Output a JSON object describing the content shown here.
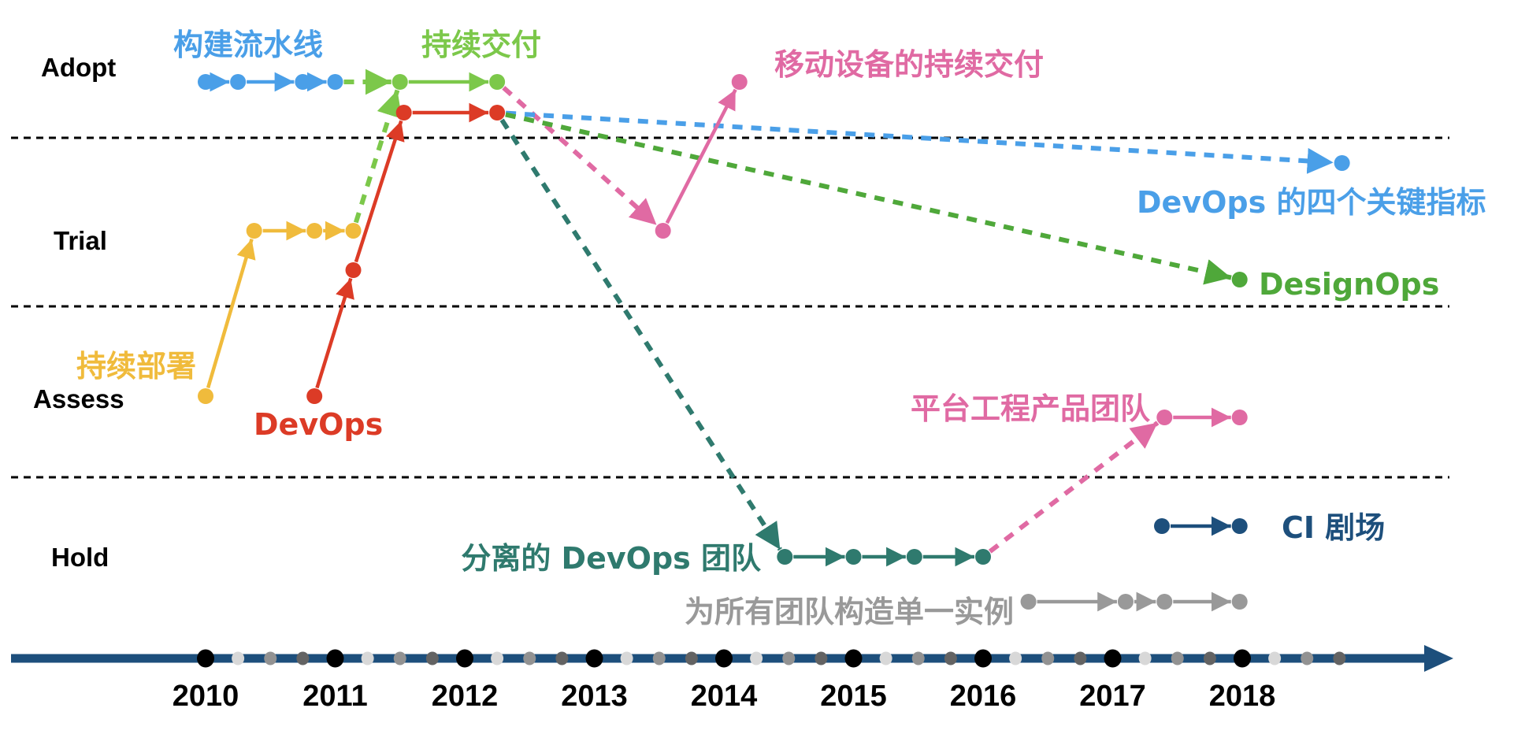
{
  "chart_data": {
    "type": "timeline",
    "title": "",
    "x_axis": {
      "start": 2010,
      "end": 2018,
      "ticks": [
        "2010",
        "2011",
        "2012",
        "2013",
        "2014",
        "2015",
        "2016",
        "2017",
        "2018"
      ],
      "minor_ticks_per_year": 3,
      "extra_minor_after_end": 3,
      "axis_color": "#1d4f7c"
    },
    "rings": [
      {
        "label": "Adopt"
      },
      {
        "label": "Trial"
      },
      {
        "label": "Assess"
      },
      {
        "label": "Hold"
      }
    ],
    "series": [
      {
        "name": "构建流水线",
        "color": "#4a9fe8",
        "label_pos": "above-start",
        "points": [
          {
            "t": 2010.0,
            "ring": "Adopt",
            "lvl": 0
          },
          {
            "t": 2010.25,
            "ring": "Adopt",
            "lvl": 0
          },
          {
            "t": 2010.75,
            "ring": "Adopt",
            "lvl": 0
          },
          {
            "t": 2011.0,
            "ring": "Adopt",
            "lvl": 0
          }
        ]
      },
      {
        "name": "持续交付",
        "color": "#7cc84a",
        "label_pos": "above-start",
        "points": [
          {
            "t": 2011.5,
            "ring": "Adopt",
            "lvl": 0
          },
          {
            "t": 2012.25,
            "ring": "Adopt",
            "lvl": 0
          }
        ]
      },
      {
        "name": "持续部署",
        "color": "#f0bb3c",
        "label_pos": "left-start",
        "points": [
          {
            "t": 2010.0,
            "ring": "Assess",
            "lvl": 0
          },
          {
            "t": 2010.375,
            "ring": "Trial",
            "lvl": 0
          },
          {
            "t": 2010.84,
            "ring": "Trial",
            "lvl": 0
          },
          {
            "t": 2011.14,
            "ring": "Trial",
            "lvl": 0
          }
        ]
      },
      {
        "name": "DevOps",
        "color": "#dc3b26",
        "label_pos": "below-start",
        "points": [
          {
            "t": 2010.84,
            "ring": "Assess",
            "lvl": 0
          },
          {
            "t": 2011.14,
            "ring": "Trial",
            "lvl": 1
          },
          {
            "t": 2011.53,
            "ring": "Adopt",
            "lvl": 1
          },
          {
            "t": 2012.25,
            "ring": "Adopt",
            "lvl": 1
          }
        ]
      },
      {
        "name": "移动设备的持续交付",
        "color": "#e06aa3",
        "label_pos": "right-end",
        "points": [
          {
            "t": 2013.53,
            "ring": "Trial",
            "lvl": 0
          },
          {
            "t": 2014.12,
            "ring": "Adopt",
            "lvl": 0
          }
        ]
      },
      {
        "name": "DevOps 的四个关键指标",
        "color": "#4a9fe8",
        "label_pos": "below-end",
        "points": [
          {
            "t": 2018.77,
            "ring": "Trial",
            "lvl": -1
          }
        ]
      },
      {
        "name": "DesignOps",
        "color": "#4fa83a",
        "label_pos": "right-end",
        "points": [
          {
            "t": 2017.98,
            "ring": "Trial",
            "lvl": 2
          }
        ]
      },
      {
        "name": "分离的 DevOps 团队",
        "color": "#2f7a6e",
        "label_pos": "left-start",
        "points": [
          {
            "t": 2014.47,
            "ring": "Hold",
            "lvl": 1
          },
          {
            "t": 2015.0,
            "ring": "Hold",
            "lvl": 1
          },
          {
            "t": 2015.47,
            "ring": "Hold",
            "lvl": 1
          },
          {
            "t": 2016.0,
            "ring": "Hold",
            "lvl": 1
          }
        ]
      },
      {
        "name": "平台工程产品团队",
        "color": "#e06aa3",
        "label_pos": "left-start",
        "points": [
          {
            "t": 2017.4,
            "ring": "Assess",
            "lvl": 1
          },
          {
            "t": 2017.98,
            "ring": "Assess",
            "lvl": 1
          }
        ]
      },
      {
        "name": "CI 剧场",
        "color": "#1d4f7c",
        "label_pos": "right-end",
        "points": [
          {
            "t": 2017.38,
            "ring": "Hold",
            "lvl": 0
          },
          {
            "t": 2017.98,
            "ring": "Hold",
            "lvl": 0
          }
        ]
      },
      {
        "name": "为所有团队构造单一实例",
        "color": "#999999",
        "label_pos": "left-start",
        "points": [
          {
            "t": 2016.35,
            "ring": "Hold",
            "lvl": 2
          },
          {
            "t": 2017.1,
            "ring": "Hold",
            "lvl": 2
          },
          {
            "t": 2017.4,
            "ring": "Hold",
            "lvl": 2
          },
          {
            "t": 2017.98,
            "ring": "Hold",
            "lvl": 2
          }
        ]
      }
    ],
    "transitions": [
      {
        "from": "构建流水线",
        "to": "持续交付",
        "style": "dashed",
        "color": "#7cc84a"
      },
      {
        "from": "持续部署",
        "to": "持续交付",
        "style": "dashed",
        "color": "#7cc84a"
      },
      {
        "from": "持续交付",
        "to": "移动设备的持续交付",
        "style": "dashed",
        "color": "#e06aa3"
      },
      {
        "from": "DevOps",
        "to": "DevOps 的四个关键指标",
        "style": "dashed",
        "color": "#4a9fe8"
      },
      {
        "from": "DevOps",
        "to": "DesignOps",
        "style": "dashed",
        "color": "#4fa83a"
      },
      {
        "from": "DevOps",
        "to": "分离的 DevOps 团队",
        "style": "dashed",
        "color": "#2f7a6e"
      },
      {
        "from": "分离的 DevOps 团队",
        "to": "平台工程产品团队",
        "style": "dashed",
        "color": "#e06aa3"
      }
    ]
  }
}
